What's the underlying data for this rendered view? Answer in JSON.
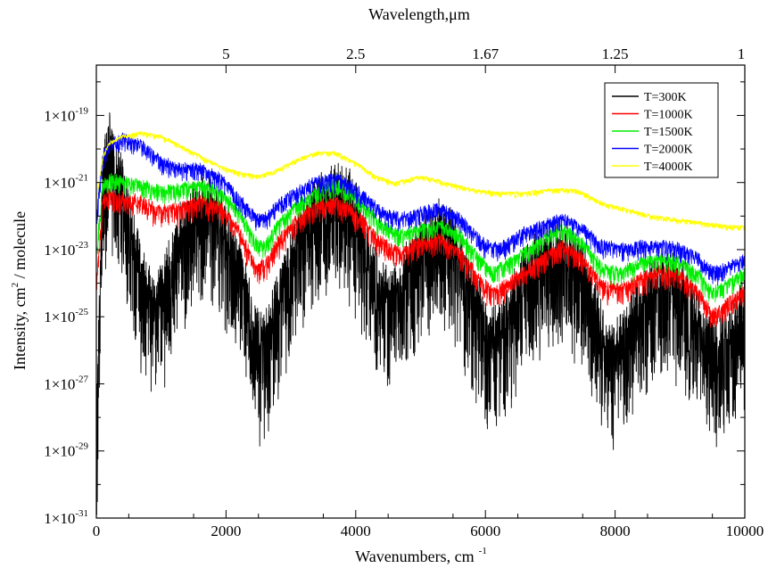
{
  "chart_data": {
    "type": "line",
    "xlabel": "Wavenumbers, cm",
    "xlabel_sup": "-1",
    "x2label": "Wavelength,μm",
    "ylabel": "Intensity, cm",
    "ylabel_sup": "2",
    "ylabel_suffix": " / molecule",
    "log_y": true,
    "xlim": [
      0,
      10000
    ],
    "ylim_exp": [
      -31,
      -17.5
    ],
    "x_ticks": [
      {
        "value": 0,
        "label": "0"
      },
      {
        "value": 2000,
        "label": "2000"
      },
      {
        "value": 4000,
        "label": "4000"
      },
      {
        "value": 6000,
        "label": "6000"
      },
      {
        "value": 8000,
        "label": "8000"
      },
      {
        "value": 10000,
        "label": "10000"
      }
    ],
    "x2_ticks": [
      {
        "value": 2000,
        "label": "5"
      },
      {
        "value": 4000,
        "label": "2.5"
      },
      {
        "value": 6000,
        "label": "1.67"
      },
      {
        "value": 8000,
        "label": "1.25"
      },
      {
        "value": 10000,
        "label": "1"
      }
    ],
    "y_ticks": [
      {
        "exp": -19,
        "base": "1×10",
        "sup": "-19"
      },
      {
        "exp": -21,
        "base": "1×10",
        "sup": "-21"
      },
      {
        "exp": -23,
        "base": "1×10",
        "sup": "-23"
      },
      {
        "exp": -25,
        "base": "1×10",
        "sup": "-25"
      },
      {
        "exp": -27,
        "base": "1×10",
        "sup": "-27"
      },
      {
        "exp": -29,
        "base": "1×10",
        "sup": "-29"
      },
      {
        "exp": -31,
        "base": "1×10",
        "sup": "-31"
      }
    ],
    "legend_position": "top-right",
    "series": [
      {
        "name": "T=300K",
        "color": "#000000",
        "spread": 3.2,
        "x": [
          0,
          100,
          200,
          300,
          500,
          700,
          900,
          1100,
          1300,
          1500,
          1650,
          1800,
          2000,
          2200,
          2400,
          2550,
          2700,
          2900,
          3100,
          3300,
          3500,
          3700,
          3800,
          3950,
          4100,
          4300,
          4500,
          4700,
          4900,
          5100,
          5300,
          5400,
          5550,
          5700,
          5900,
          6050,
          6200,
          6400,
          6600,
          6800,
          7000,
          7200,
          7300,
          7500,
          7700,
          7850,
          8000,
          8200,
          8400,
          8600,
          8800,
          8900,
          9000,
          9200,
          9400,
          9600,
          9800,
          10000
        ],
        "y": [
          -28.5,
          -20.5,
          -19.5,
          -20.2,
          -21.5,
          -23.5,
          -24.5,
          -23.5,
          -22.2,
          -21.6,
          -21.4,
          -21.6,
          -22.3,
          -23.4,
          -24.8,
          -25.6,
          -25.0,
          -23.8,
          -22.6,
          -21.8,
          -21.3,
          -21.1,
          -21.1,
          -21.4,
          -22.3,
          -23.6,
          -24.3,
          -23.8,
          -23.0,
          -22.5,
          -22.2,
          -22.2,
          -22.6,
          -23.6,
          -24.6,
          -25.4,
          -25.2,
          -24.5,
          -23.6,
          -23.1,
          -22.8,
          -22.7,
          -22.8,
          -23.4,
          -24.6,
          -25.6,
          -25.8,
          -25.2,
          -24.4,
          -23.8,
          -23.6,
          -23.7,
          -24.0,
          -24.6,
          -25.3,
          -25.8,
          -25.4,
          -24.3
        ]
      },
      {
        "name": "T=1000K",
        "color": "#ff0000",
        "spread": 0.6,
        "x": [
          0,
          100,
          200,
          400,
          700,
          1000,
          1300,
          1600,
          1900,
          2200,
          2450,
          2600,
          2800,
          3100,
          3400,
          3700,
          3900,
          4100,
          4400,
          4700,
          5000,
          5300,
          5600,
          5900,
          6100,
          6300,
          6600,
          6900,
          7200,
          7500,
          7800,
          8100,
          8400,
          8700,
          9000,
          9300,
          9500,
          9700,
          10000
        ],
        "y": [
          -24.0,
          -21.5,
          -21.3,
          -21.4,
          -21.5,
          -21.8,
          -21.7,
          -21.5,
          -21.6,
          -22.4,
          -23.4,
          -23.4,
          -22.7,
          -22.0,
          -21.6,
          -21.5,
          -21.7,
          -22.1,
          -22.7,
          -23.0,
          -22.7,
          -22.6,
          -23.0,
          -23.8,
          -24.2,
          -24.0,
          -23.6,
          -23.2,
          -22.8,
          -23.2,
          -24.0,
          -24.1,
          -23.8,
          -23.6,
          -23.7,
          -24.2,
          -24.9,
          -24.6,
          -24.1
        ]
      },
      {
        "name": "T=1500K",
        "color": "#00ee00",
        "spread": 0.5,
        "x": [
          0,
          100,
          200,
          400,
          700,
          1000,
          1300,
          1600,
          1900,
          2200,
          2450,
          2600,
          2800,
          3100,
          3400,
          3700,
          3900,
          4100,
          4400,
          4700,
          5000,
          5300,
          5600,
          5900,
          6100,
          6300,
          6600,
          6900,
          7200,
          7500,
          7800,
          8100,
          8400,
          8700,
          9000,
          9300,
          9500,
          9700,
          10000
        ],
        "y": [
          -23.0,
          -21.0,
          -20.8,
          -20.9,
          -21.0,
          -21.2,
          -21.1,
          -21.0,
          -21.2,
          -21.8,
          -22.7,
          -22.8,
          -22.2,
          -21.6,
          -21.2,
          -21.0,
          -21.2,
          -21.6,
          -22.2,
          -22.5,
          -22.3,
          -22.2,
          -22.5,
          -23.2,
          -23.6,
          -23.4,
          -23.0,
          -22.6,
          -22.3,
          -22.7,
          -23.5,
          -23.6,
          -23.3,
          -23.2,
          -23.3,
          -23.7,
          -24.2,
          -24.0,
          -23.6
        ]
      },
      {
        "name": "T=2000K",
        "color": "#0000ff",
        "spread": 0.5,
        "x": [
          0,
          100,
          200,
          400,
          700,
          1000,
          1300,
          1600,
          1900,
          2200,
          2450,
          2600,
          2800,
          3100,
          3400,
          3700,
          3900,
          4100,
          4400,
          4700,
          5000,
          5300,
          5600,
          5900,
          6100,
          6300,
          6600,
          6900,
          7200,
          7500,
          7800,
          8100,
          8400,
          8700,
          9000,
          9300,
          9500,
          9700,
          10000
        ],
        "y": [
          -22.0,
          -20.2,
          -19.8,
          -19.6,
          -19.8,
          -20.3,
          -20.5,
          -20.5,
          -20.8,
          -21.4,
          -22.0,
          -22.0,
          -21.6,
          -21.2,
          -20.9,
          -20.8,
          -21.0,
          -21.3,
          -21.8,
          -22.0,
          -21.8,
          -21.7,
          -22.0,
          -22.6,
          -22.9,
          -22.8,
          -22.4,
          -22.2,
          -22.0,
          -22.3,
          -22.8,
          -22.9,
          -22.8,
          -22.8,
          -22.9,
          -23.2,
          -23.6,
          -23.5,
          -23.2
        ]
      },
      {
        "name": "T=4000K",
        "color": "#ffff00",
        "spread": 0.15,
        "x": [
          0,
          100,
          200,
          400,
          700,
          1000,
          1300,
          1600,
          1900,
          2200,
          2500,
          2800,
          3100,
          3400,
          3700,
          4000,
          4300,
          4600,
          5000,
          5400,
          5800,
          6200,
          6600,
          7000,
          7400,
          7800,
          8200,
          8600,
          9000,
          9400,
          9800,
          10000
        ],
        "y": [
          -21.5,
          -20.2,
          -19.8,
          -19.6,
          -19.5,
          -19.6,
          -19.9,
          -20.2,
          -20.5,
          -20.7,
          -20.8,
          -20.6,
          -20.3,
          -20.1,
          -20.1,
          -20.4,
          -20.8,
          -21.0,
          -20.8,
          -21.0,
          -21.2,
          -21.3,
          -21.3,
          -21.2,
          -21.2,
          -21.6,
          -21.8,
          -22.0,
          -22.1,
          -22.2,
          -22.3,
          -22.3
        ]
      }
    ]
  }
}
